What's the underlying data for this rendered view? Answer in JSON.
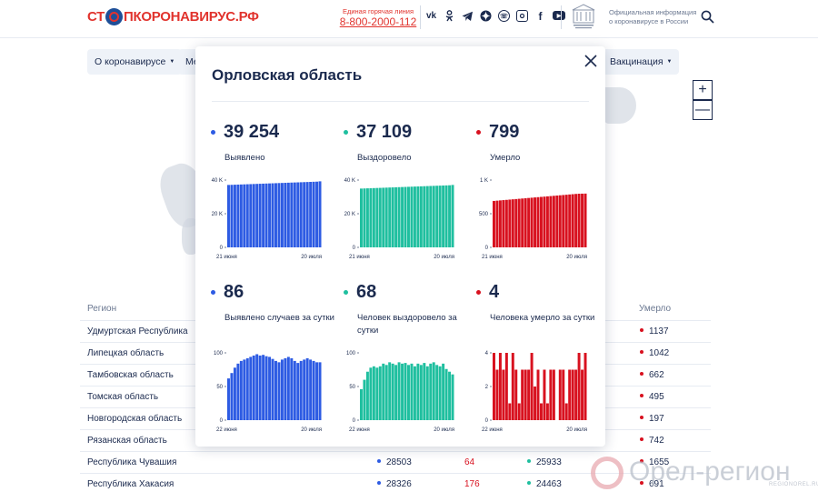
{
  "header": {
    "logo_prefix": "СТ",
    "logo_suffix": "ПКОРОНАВИРУС.РФ",
    "hotline_label": "Единая горячая линия",
    "hotline_phone": "8-800-2000-112",
    "official_text": "Официальная информация о коронавирусе в России",
    "socials": [
      "vk-icon",
      "odnoklassniki-icon",
      "telegram-icon",
      "yandex-zen-icon",
      "viber-icon",
      "instagram-icon",
      "facebook-icon",
      "youtube-icon"
    ]
  },
  "nav": {
    "items": [
      {
        "label": "О коронавирусе"
      },
      {
        "label": "Ме"
      },
      {
        "label": "Вакцинация"
      }
    ]
  },
  "map": {
    "zoom_in": "+",
    "zoom_out": "—"
  },
  "table": {
    "header_region": "Регион",
    "header_died": "Умерло",
    "rows": [
      {
        "region": "Удмуртская Республика",
        "died": "1137"
      },
      {
        "region": "Липецкая область",
        "died": "1042"
      },
      {
        "region": "Тамбовская область",
        "died": "662"
      },
      {
        "region": "Томская область",
        "died": "495"
      },
      {
        "region": "Новгородская область",
        "died": "197"
      },
      {
        "region": "Рязанская область",
        "died": "742"
      },
      {
        "region": "Республика Чувашия",
        "cases": "28503",
        "new": "64",
        "recovered": "25933",
        "died": "1655"
      },
      {
        "region": "Республика Хакасия",
        "cases": "28326",
        "new": "176",
        "recovered": "24463",
        "died": "691"
      }
    ]
  },
  "colors": {
    "blue": "#2d5be3",
    "green": "#1fbf9f",
    "red": "#d8111f",
    "navy": "#1b2a4e",
    "accent": "#e1332d"
  },
  "modal": {
    "title": "Орловская область",
    "stats": [
      {
        "value": "39 254",
        "label": "Выявлено",
        "color": "#2d5be3"
      },
      {
        "value": "37 109",
        "label": "Выздоровело",
        "color": "#1fbf9f"
      },
      {
        "value": "799",
        "label": "Умерло",
        "color": "#d8111f"
      },
      {
        "value": "86",
        "label": "Выявлено случаев за сутки",
        "color": "#2d5be3"
      },
      {
        "value": "68",
        "label": "Человек выздоровело за сутки",
        "color": "#1fbf9f"
      },
      {
        "value": "4",
        "label": "Человека умерло за сутки",
        "color": "#d8111f"
      }
    ]
  },
  "chart_data": [
    {
      "type": "bar",
      "name": "cumulative-detected",
      "color": "#2d5be3",
      "yticks": [
        "40 K",
        "20 K",
        "0"
      ],
      "ylim": [
        0,
        40000
      ],
      "xlabels": [
        "21 июня",
        "20 июля"
      ],
      "values": [
        37100,
        37170,
        37240,
        37310,
        37380,
        37450,
        37520,
        37590,
        37660,
        37730,
        37800,
        37870,
        37940,
        38010,
        38080,
        38150,
        38220,
        38290,
        38360,
        38430,
        38500,
        38570,
        38640,
        38710,
        38780,
        38850,
        38920,
        38990,
        39060,
        39254
      ]
    },
    {
      "type": "bar",
      "name": "cumulative-recovered",
      "color": "#1fbf9f",
      "yticks": [
        "40 K",
        "20 K",
        "0"
      ],
      "ylim": [
        0,
        40000
      ],
      "xlabels": [
        "21 июня",
        "20 июля"
      ],
      "values": [
        34950,
        35020,
        35090,
        35160,
        35230,
        35300,
        35370,
        35440,
        35510,
        35580,
        35650,
        35720,
        35790,
        35860,
        35930,
        36000,
        36070,
        36140,
        36210,
        36280,
        36350,
        36420,
        36490,
        36560,
        36630,
        36700,
        36770,
        36840,
        36910,
        37109
      ]
    },
    {
      "type": "bar",
      "name": "cumulative-died",
      "color": "#d8111f",
      "yticks": [
        "1 K",
        "500",
        "0"
      ],
      "ylim": [
        0,
        1000
      ],
      "xlabels": [
        "21 июня",
        "20 июля"
      ],
      "values": [
        690,
        694,
        698,
        702,
        706,
        710,
        714,
        718,
        722,
        726,
        730,
        734,
        738,
        742,
        746,
        750,
        754,
        758,
        762,
        766,
        770,
        774,
        778,
        782,
        786,
        790,
        794,
        797,
        798,
        799
      ]
    },
    {
      "type": "bar",
      "name": "daily-detected",
      "color": "#2d5be3",
      "yticks": [
        "100",
        "50",
        "0"
      ],
      "ylim": [
        0,
        100
      ],
      "xlabels": [
        "22 июня",
        "20 июля"
      ],
      "values": [
        62,
        70,
        78,
        84,
        88,
        90,
        92,
        94,
        96,
        98,
        96,
        97,
        95,
        94,
        91,
        88,
        86,
        90,
        92,
        94,
        92,
        88,
        85,
        88,
        90,
        92,
        90,
        88,
        86,
        86
      ]
    },
    {
      "type": "bar",
      "name": "daily-recovered",
      "color": "#1fbf9f",
      "yticks": [
        "100",
        "50",
        "0"
      ],
      "ylim": [
        0,
        100
      ],
      "xlabels": [
        "22 июня",
        "20 июля"
      ],
      "values": [
        46,
        60,
        72,
        78,
        80,
        78,
        80,
        84,
        82,
        86,
        84,
        82,
        86,
        84,
        85,
        82,
        84,
        80,
        84,
        82,
        85,
        80,
        84,
        86,
        82,
        80,
        84,
        76,
        72,
        68
      ]
    },
    {
      "type": "bar",
      "name": "daily-died",
      "color": "#d8111f",
      "yticks": [
        "4",
        "2",
        "0"
      ],
      "ylim": [
        0,
        4
      ],
      "xlabels": [
        "22 июня",
        "20 июля"
      ],
      "values": [
        4,
        3,
        4,
        3,
        4,
        1,
        4,
        3,
        1,
        3,
        3,
        3,
        4,
        2,
        3,
        1,
        3,
        1,
        3,
        3,
        0,
        3,
        3,
        1,
        3,
        3,
        3,
        4,
        3,
        4
      ]
    }
  ]
}
